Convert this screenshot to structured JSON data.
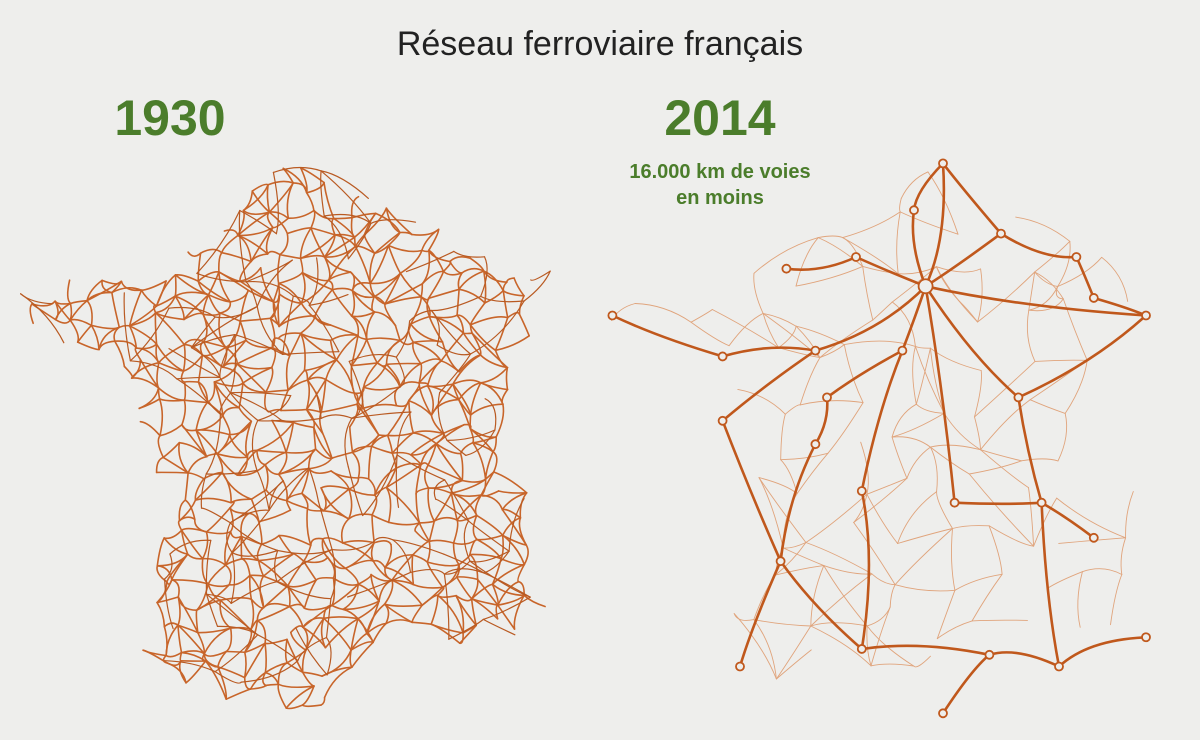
{
  "header": {
    "title": "Réseau ferroviaire français"
  },
  "maps": [
    {
      "year": "1930"
    },
    {
      "year": "2014",
      "subtitle": [
        "16.000 km de voies",
        "en moins"
      ]
    }
  ]
}
